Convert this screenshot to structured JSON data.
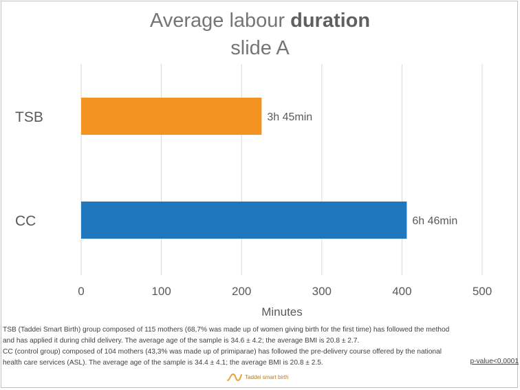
{
  "title": {
    "prefix": "Average labour ",
    "bold": "duration",
    "line2": "slide A"
  },
  "chart_data": {
    "type": "bar",
    "orientation": "horizontal",
    "categories": [
      "TSB",
      "CC"
    ],
    "values": [
      225,
      406
    ],
    "data_labels": [
      "3h 45min",
      "6h 46min"
    ],
    "colors": [
      "#f39422",
      "#1f77bd"
    ],
    "xlabel": "Minutes",
    "ylabel": "",
    "xlim": [
      0,
      500
    ],
    "xticks": [
      0,
      100,
      200,
      300,
      400,
      500
    ],
    "grid": true
  },
  "notes": {
    "line1": "TSB (Taddei Smart Birth) group composed of 115 mothers (68,7% was made up of women giving birth for the first time) has followed the method",
    "line2": "and has applied it during child delivery. The average age of the sample is 34.6 ± 4.2; the average BMI is 20.8 ± 2.7.",
    "line3": "CC (control group) composed of 104 mothers (43,3% was made up of primiparae) has followed the pre-delivery course offered by the national",
    "line4": "health care services (ASL). The average age of the sample is 34.4 ± 4.1; the average BMI is 20.8 ± 2.5.",
    "pvalue": "p-value<0,0001"
  },
  "logo": {
    "icon": "wave-logo-icon",
    "text": "Taddei smart birth",
    "color": "#e8a33a"
  }
}
